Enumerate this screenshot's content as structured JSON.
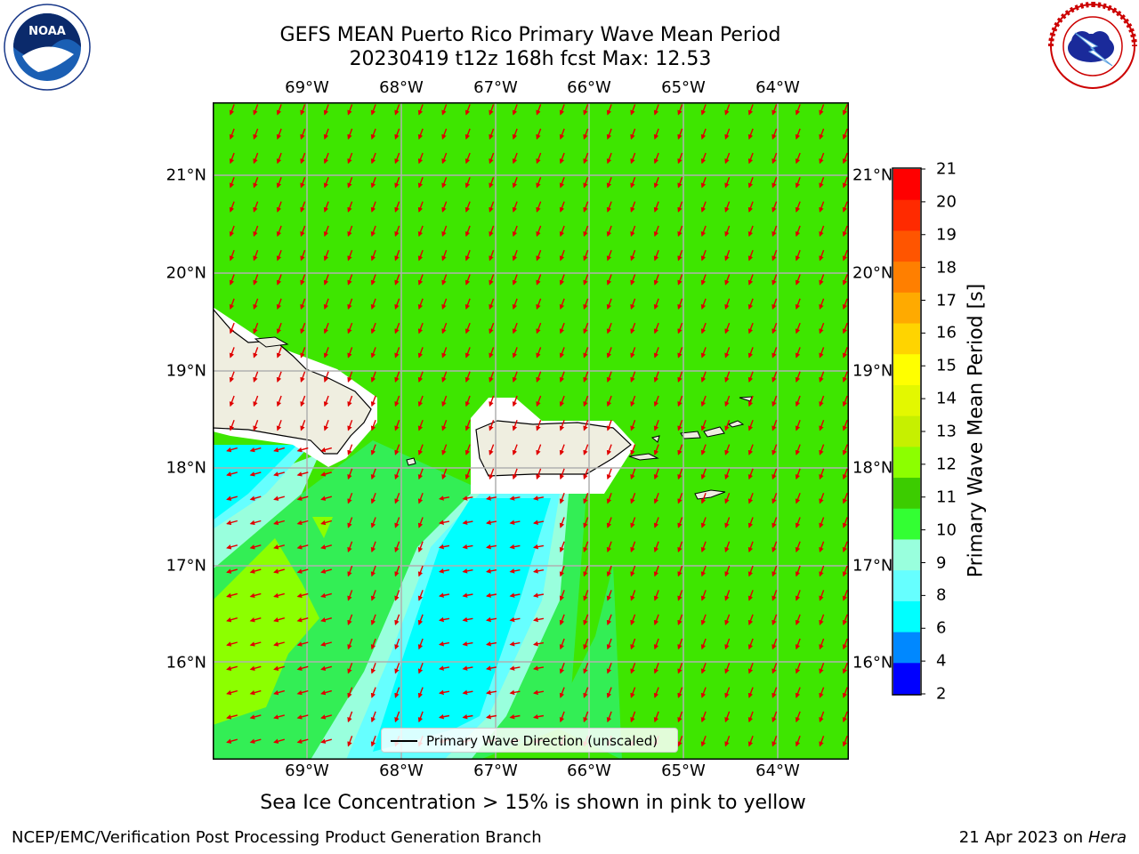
{
  "title_line1": "GEFS MEAN Puerto Rico Primary Wave Mean Period",
  "title_line2": "20230419 t12z 168h fcst   Max: 12.53",
  "lon_labels": [
    "69°W",
    "68°W",
    "67°W",
    "66°W",
    "65°W",
    "64°W"
  ],
  "lat_labels": [
    "21°N",
    "20°N",
    "19°N",
    "18°N",
    "17°N",
    "16°N"
  ],
  "colorbar": {
    "label": "Primary Wave Mean Period [s]",
    "ticks": [
      "21",
      "20",
      "19",
      "18",
      "17",
      "16",
      "15",
      "14",
      "13",
      "12",
      "11",
      "10",
      "9",
      "8",
      "6",
      "4",
      "2"
    ],
    "colors": [
      "#ff0000",
      "#ff2a00",
      "#ff5500",
      "#ff7f00",
      "#ffaa00",
      "#ffd400",
      "#ffff00",
      "#e3f800",
      "#c6f000",
      "#8cff00",
      "#3ccc00",
      "#33ff33",
      "#99ffdd",
      "#66ffff",
      "#00ffff",
      "#0088ff",
      "#0000ff"
    ]
  },
  "legend_label": "Primary Wave Direction (unscaled)",
  "note": "Sea Ice Concentration > 15% is shown in pink to yellow",
  "footer_left": "NCEP/EMC/Verification Post Processing Product Generation Branch",
  "footer_right_date": "21 Apr 2023 on",
  "footer_right_host": "Hera",
  "logos": {
    "left": "noaa-logo",
    "right": "nws-logo",
    "noaa_text": "NOAA"
  }
}
